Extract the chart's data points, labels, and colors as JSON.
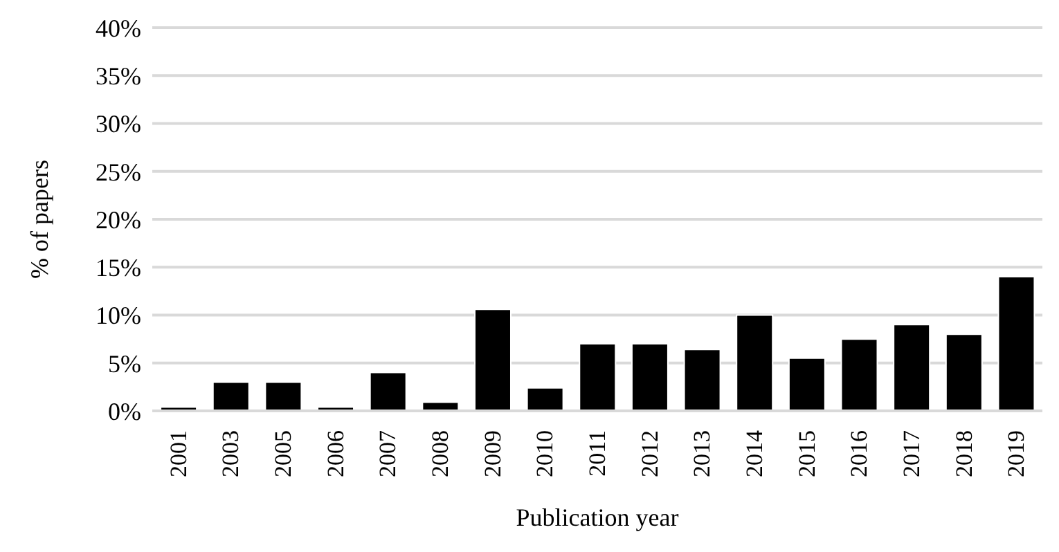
{
  "chart_data": {
    "type": "bar",
    "xlabel": "Publication year",
    "ylabel": "% of papers",
    "categories": [
      "2001",
      "2003",
      "2005",
      "2006",
      "2007",
      "2008",
      "2009",
      "2010",
      "2011",
      "2012",
      "2013",
      "2014",
      "2015",
      "2016",
      "2017",
      "2018",
      "2019"
    ],
    "values": [
      0.4,
      3,
      3,
      0.4,
      4,
      0.9,
      10.6,
      2.4,
      7,
      7,
      6.4,
      10,
      5.5,
      7.5,
      9,
      8,
      14
    ],
    "color": "#000000",
    "ylim": [
      0,
      40
    ],
    "yticks": [
      {
        "value": 0,
        "label": "0%"
      },
      {
        "value": 5,
        "label": "5%"
      },
      {
        "value": 10,
        "label": "10%"
      },
      {
        "value": 15,
        "label": "15%"
      },
      {
        "value": 20,
        "label": "20%"
      },
      {
        "value": 25,
        "label": "25%"
      },
      {
        "value": 30,
        "label": "30%"
      },
      {
        "value": 35,
        "label": "35%"
      },
      {
        "value": 40,
        "label": "40%"
      }
    ],
    "grid": "y",
    "legend": false
  }
}
